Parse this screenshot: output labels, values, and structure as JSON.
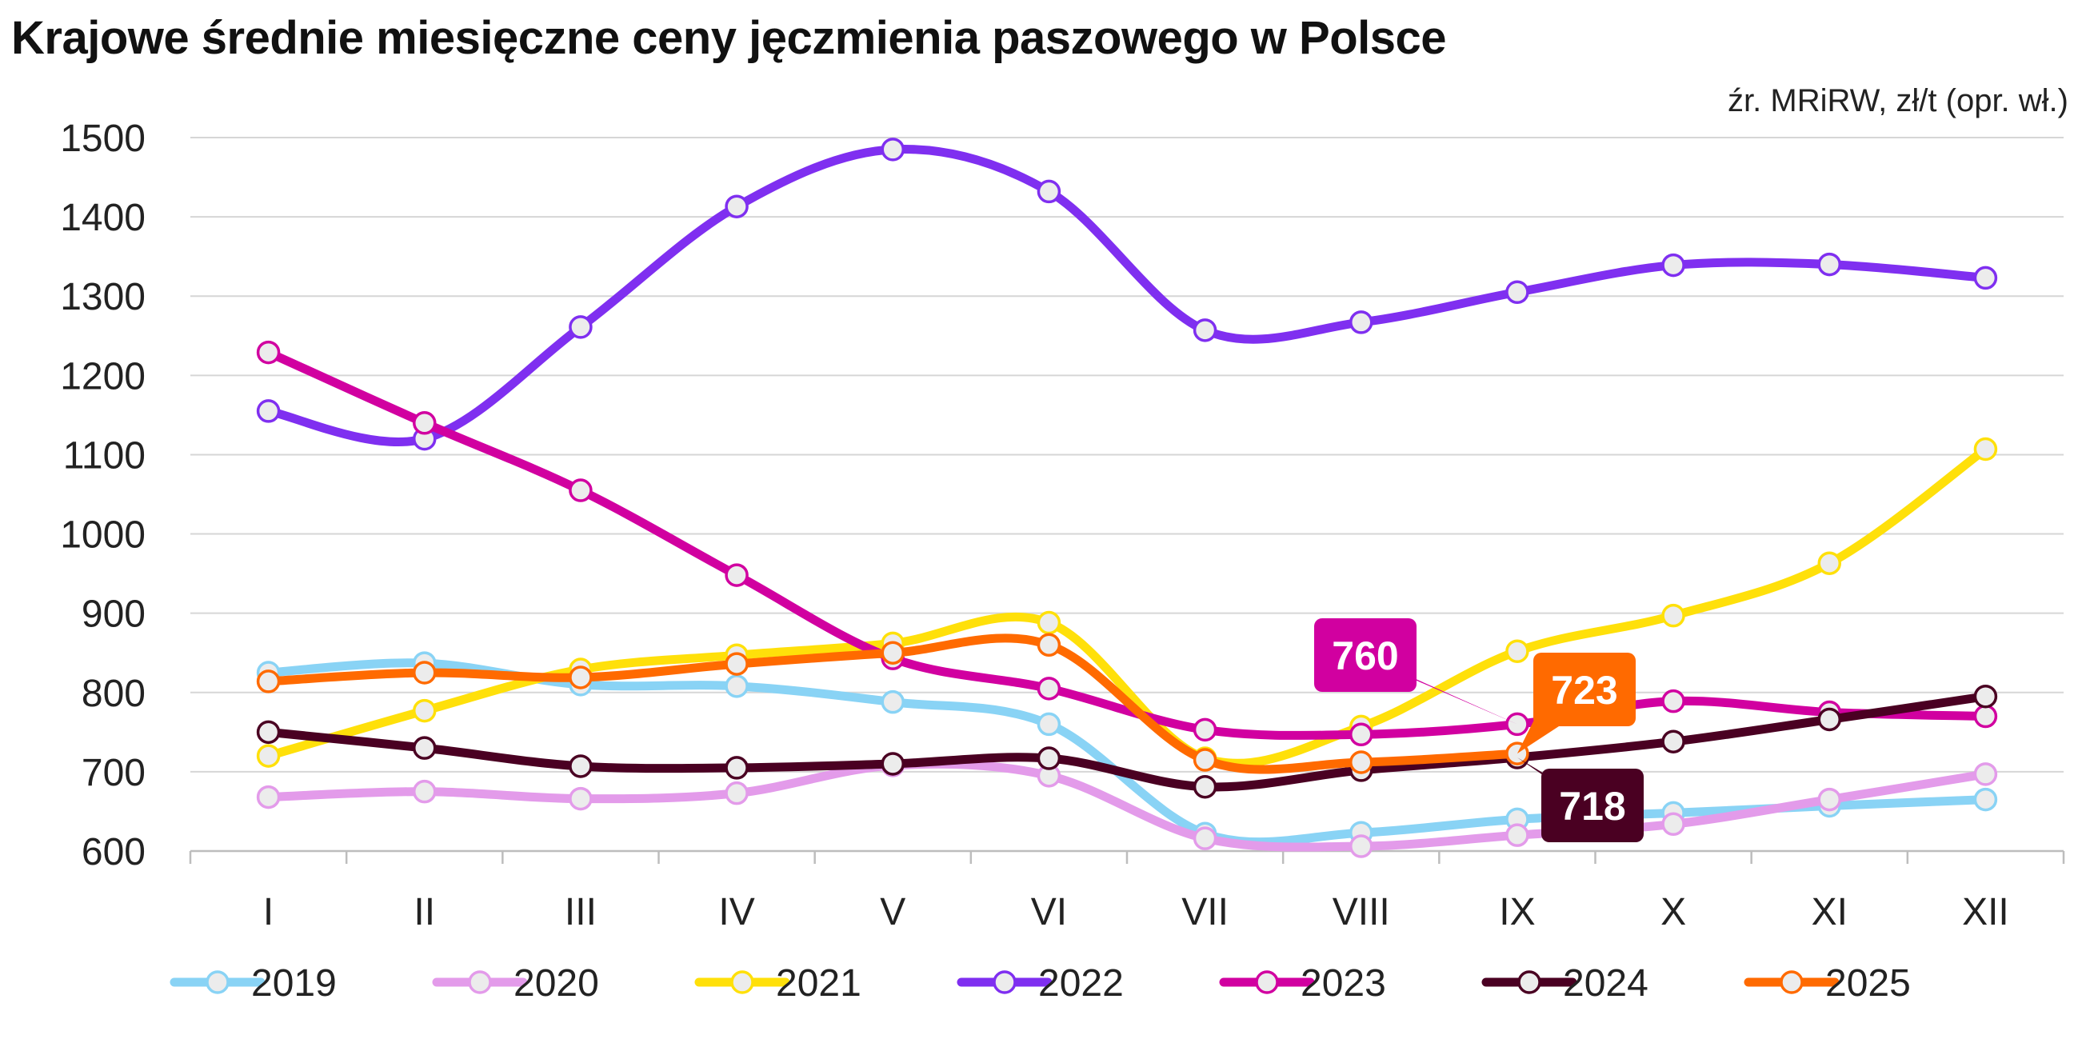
{
  "chart_data": {
    "type": "line",
    "title": "Krajowe średnie miesięczne ceny jęczmienia paszowego w Polsce",
    "source_note": "źr. MRiRW, zł/t (opr. wł.)",
    "categories": [
      "I",
      "II",
      "III",
      "IV",
      "V",
      "VI",
      "VII",
      "VIII",
      "IX",
      "X",
      "XI",
      "XII"
    ],
    "ylim": [
      600,
      1500
    ],
    "yticks": [
      600,
      700,
      800,
      900,
      1000,
      1100,
      1200,
      1300,
      1400,
      1500
    ],
    "grid": true,
    "legend_position": "bottom",
    "series": [
      {
        "name": "2019",
        "color": "#89d3f5",
        "values": [
          825,
          837,
          810,
          808,
          788,
          760,
          622,
          623,
          640,
          648,
          657,
          665
        ]
      },
      {
        "name": "2020",
        "color": "#e39bea",
        "values": [
          668,
          675,
          666,
          673,
          708,
          695,
          616,
          606,
          620,
          634,
          665,
          697
        ]
      },
      {
        "name": "2021",
        "color": "#ffe00a",
        "values": [
          720,
          777,
          829,
          847,
          862,
          888,
          717,
          757,
          852,
          897,
          963,
          1107
        ]
      },
      {
        "name": "2022",
        "color": "#7f2ff0",
        "values": [
          1155,
          1120,
          1261,
          1413,
          1485,
          1432,
          1257,
          1267,
          1305,
          1339,
          1340,
          1323
        ]
      },
      {
        "name": "2023",
        "color": "#d100a0",
        "values": [
          1229,
          1140,
          1055,
          948,
          843,
          805,
          753,
          747,
          760,
          789,
          775,
          770
        ]
      },
      {
        "name": "2024",
        "color": "#4a0022",
        "values": [
          750,
          730,
          707,
          705,
          710,
          717,
          681,
          702,
          718,
          738,
          766,
          795
        ]
      },
      {
        "name": "2025",
        "color": "#ff6a00",
        "values": [
          814,
          825,
          819,
          836,
          850,
          860,
          715,
          712,
          723,
          null,
          null,
          null
        ]
      }
    ],
    "annotations": [
      {
        "text": "760",
        "series": "2023",
        "category": "IX",
        "value": 760,
        "color": "#d100a0"
      },
      {
        "text": "723",
        "series": "2025",
        "category": "IX",
        "value": 723,
        "color": "#ff6a00"
      },
      {
        "text": "718",
        "series": "2024",
        "category": "IX",
        "value": 718,
        "color": "#4a0022"
      }
    ]
  }
}
